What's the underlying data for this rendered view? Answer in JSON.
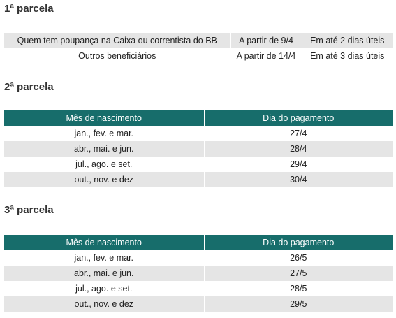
{
  "sections": [
    {
      "title": "1ª parcela",
      "table": {
        "rows": [
          [
            "Quem tem poupança na Caixa ou correntista do BB",
            "A partir de 9/4",
            "Em até 2 dias úteis"
          ],
          [
            "Outros beneficiários",
            "A partir de 14/4",
            "Em até 3 dias úteis"
          ]
        ]
      }
    },
    {
      "title": "2ª parcela",
      "table": {
        "header": [
          "Mês de nascimento",
          "Dia do pagamento"
        ],
        "rows": [
          [
            "jan., fev. e mar.",
            "27/4"
          ],
          [
            "abr., mai. e jun.",
            "28/4"
          ],
          [
            "jul., ago. e set.",
            "29/4"
          ],
          [
            "out., nov. e dez",
            "30/4"
          ]
        ]
      }
    },
    {
      "title": "3ª parcela",
      "table": {
        "header": [
          "Mês de nascimento",
          "Dia do pagamento"
        ],
        "rows": [
          [
            "jan., fev. e mar.",
            "26/5"
          ],
          [
            "abr., mai. e jun.",
            "27/5"
          ],
          [
            "jul., ago. e set.",
            "28/5"
          ],
          [
            "out., nov. e dez",
            "29/5"
          ]
        ]
      }
    }
  ]
}
